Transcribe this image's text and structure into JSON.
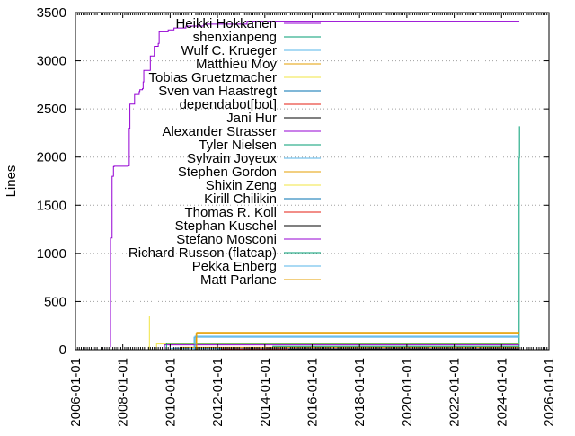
{
  "chart_data": {
    "type": "line",
    "title": "",
    "xlabel": "",
    "ylabel": "Lines",
    "xlim": [
      "2006-01-01",
      "2026-01-01"
    ],
    "ylim": [
      0,
      3500
    ],
    "x_ticks": [
      "2006-01-01",
      "2008-01-01",
      "2010-01-01",
      "2012-01-01",
      "2014-01-01",
      "2016-01-01",
      "2018-01-01",
      "2020-01-01",
      "2022-01-01",
      "2024-01-01",
      "2026-01-01"
    ],
    "y_ticks": [
      0,
      500,
      1000,
      1500,
      2000,
      2500,
      3000,
      3500
    ],
    "grid": "horizontal-dotted",
    "legend": "top-center",
    "series": [
      {
        "name": "Heikki Hokkanen",
        "color": "#9400d3",
        "x": [
          "2007-06-20",
          "2007-06-25",
          "2007-07-20",
          "2007-08-10",
          "2007-08-20",
          "2008-03-25",
          "2008-04-10",
          "2008-04-20",
          "2008-07-01",
          "2008-09-10",
          "2008-09-20",
          "2008-10-30",
          "2008-11-10",
          "2008-11-20",
          "2009-03-01",
          "2009-05-01",
          "2009-07-01",
          "2009-07-15",
          "2009-12-01",
          "2010-03-01",
          "2010-09-01",
          "2011-06-01",
          "2013-04-01",
          "2024-10-01"
        ],
        "y": [
          30,
          1160,
          1800,
          1900,
          1905,
          1910,
          2300,
          2550,
          2650,
          2680,
          2700,
          2710,
          2780,
          2900,
          3050,
          3150,
          3180,
          3300,
          3320,
          3340,
          3360,
          3380,
          3410,
          3410
        ]
      },
      {
        "name": "shenxianpeng",
        "color": "#009e73",
        "x": [
          "2006-01-01",
          "2024-09-25",
          "2024-09-28",
          "2024-10-02",
          "2024-10-03"
        ],
        "y": [
          0,
          0,
          1990,
          2010,
          2320
        ]
      },
      {
        "name": "Wulf C. Krueger",
        "color": "#56b4e9",
        "x": [
          "2011-01-01",
          "2011-01-05",
          "2024-10-01"
        ],
        "y": [
          0,
          130,
          130
        ]
      },
      {
        "name": "Matthieu Moy",
        "color": "#e69f00",
        "x": [
          "2011-02-01",
          "2011-02-05",
          "2024-10-01"
        ],
        "y": [
          0,
          170,
          170
        ]
      },
      {
        "name": "Tobias Gruetzmacher",
        "color": "#f0e442",
        "x": [
          "2008-02-01",
          "2009-02-10",
          "2009-02-15",
          "2024-10-01"
        ],
        "y": [
          0,
          30,
          350,
          350
        ]
      },
      {
        "name": "Sven van Haastregt",
        "color": "#0072b2",
        "x": [
          "2012-01-01",
          "2012-01-05",
          "2024-10-01"
        ],
        "y": [
          0,
          12,
          12
        ]
      },
      {
        "name": "dependabot[bot]",
        "color": "#e51e10",
        "x": [
          "2023-01-01",
          "2023-01-05",
          "2024-10-01"
        ],
        "y": [
          0,
          4,
          4
        ]
      },
      {
        "name": "Jani Hur",
        "color": "#000000",
        "x": [
          "2012-06-01",
          "2012-06-05",
          "2024-10-01"
        ],
        "y": [
          0,
          6,
          6
        ]
      },
      {
        "name": "Alexander Strasser",
        "color": "#9400d3",
        "x": [
          "2011-06-01",
          "2011-06-05",
          "2024-10-01"
        ],
        "y": [
          0,
          20,
          20
        ]
      },
      {
        "name": "Tyler Nielsen",
        "color": "#009e73",
        "x": [
          "2014-05-01",
          "2014-05-05",
          "2024-10-01"
        ],
        "y": [
          0,
          35,
          35
        ]
      },
      {
        "name": "Sylvain Joyeux",
        "color": "#56b4e9",
        "x": [
          "2010-01-01",
          "2010-01-05",
          "2024-10-01"
        ],
        "y": [
          0,
          15,
          15
        ]
      },
      {
        "name": "Stephen Gordon",
        "color": "#e69f00",
        "x": [
          "2010-06-01",
          "2010-06-05",
          "2024-10-01"
        ],
        "y": [
          0,
          25,
          25
        ]
      },
      {
        "name": "Shixin Zeng",
        "color": "#f0e442",
        "x": [
          "2009-06-01",
          "2009-06-05",
          "2024-10-01"
        ],
        "y": [
          0,
          60,
          60
        ]
      },
      {
        "name": "Kirill Chilikin",
        "color": "#0072b2",
        "x": [
          "2013-01-01",
          "2013-01-05",
          "2024-10-01"
        ],
        "y": [
          0,
          10,
          10
        ]
      },
      {
        "name": "Thomas R. Koll",
        "color": "#e51e10",
        "x": [
          "2012-03-01",
          "2012-03-05",
          "2024-10-01"
        ],
        "y": [
          0,
          8,
          8
        ]
      },
      {
        "name": "Stephan Kuschel",
        "color": "#000000",
        "x": [
          "2015-01-01",
          "2015-01-05",
          "2024-10-01"
        ],
        "y": [
          0,
          5,
          5
        ]
      },
      {
        "name": "Stefano Mosconi",
        "color": "#9400d3",
        "x": [
          "2009-10-01",
          "2009-10-05",
          "2024-10-01"
        ],
        "y": [
          0,
          50,
          50
        ]
      },
      {
        "name": "Richard Russon (flatcap)",
        "color": "#009e73",
        "x": [
          "2009-11-01",
          "2009-11-05",
          "2024-10-01"
        ],
        "y": [
          0,
          65,
          65
        ]
      },
      {
        "name": "Pekka Enberg",
        "color": "#56b4e9",
        "x": [
          "2011-01-15",
          "2011-01-20",
          "2024-10-01"
        ],
        "y": [
          0,
          140,
          140
        ]
      },
      {
        "name": "Matt Parlane",
        "color": "#e69f00",
        "x": [
          "2011-02-10",
          "2011-02-15",
          "2024-10-01"
        ],
        "y": [
          0,
          180,
          180
        ]
      }
    ]
  }
}
